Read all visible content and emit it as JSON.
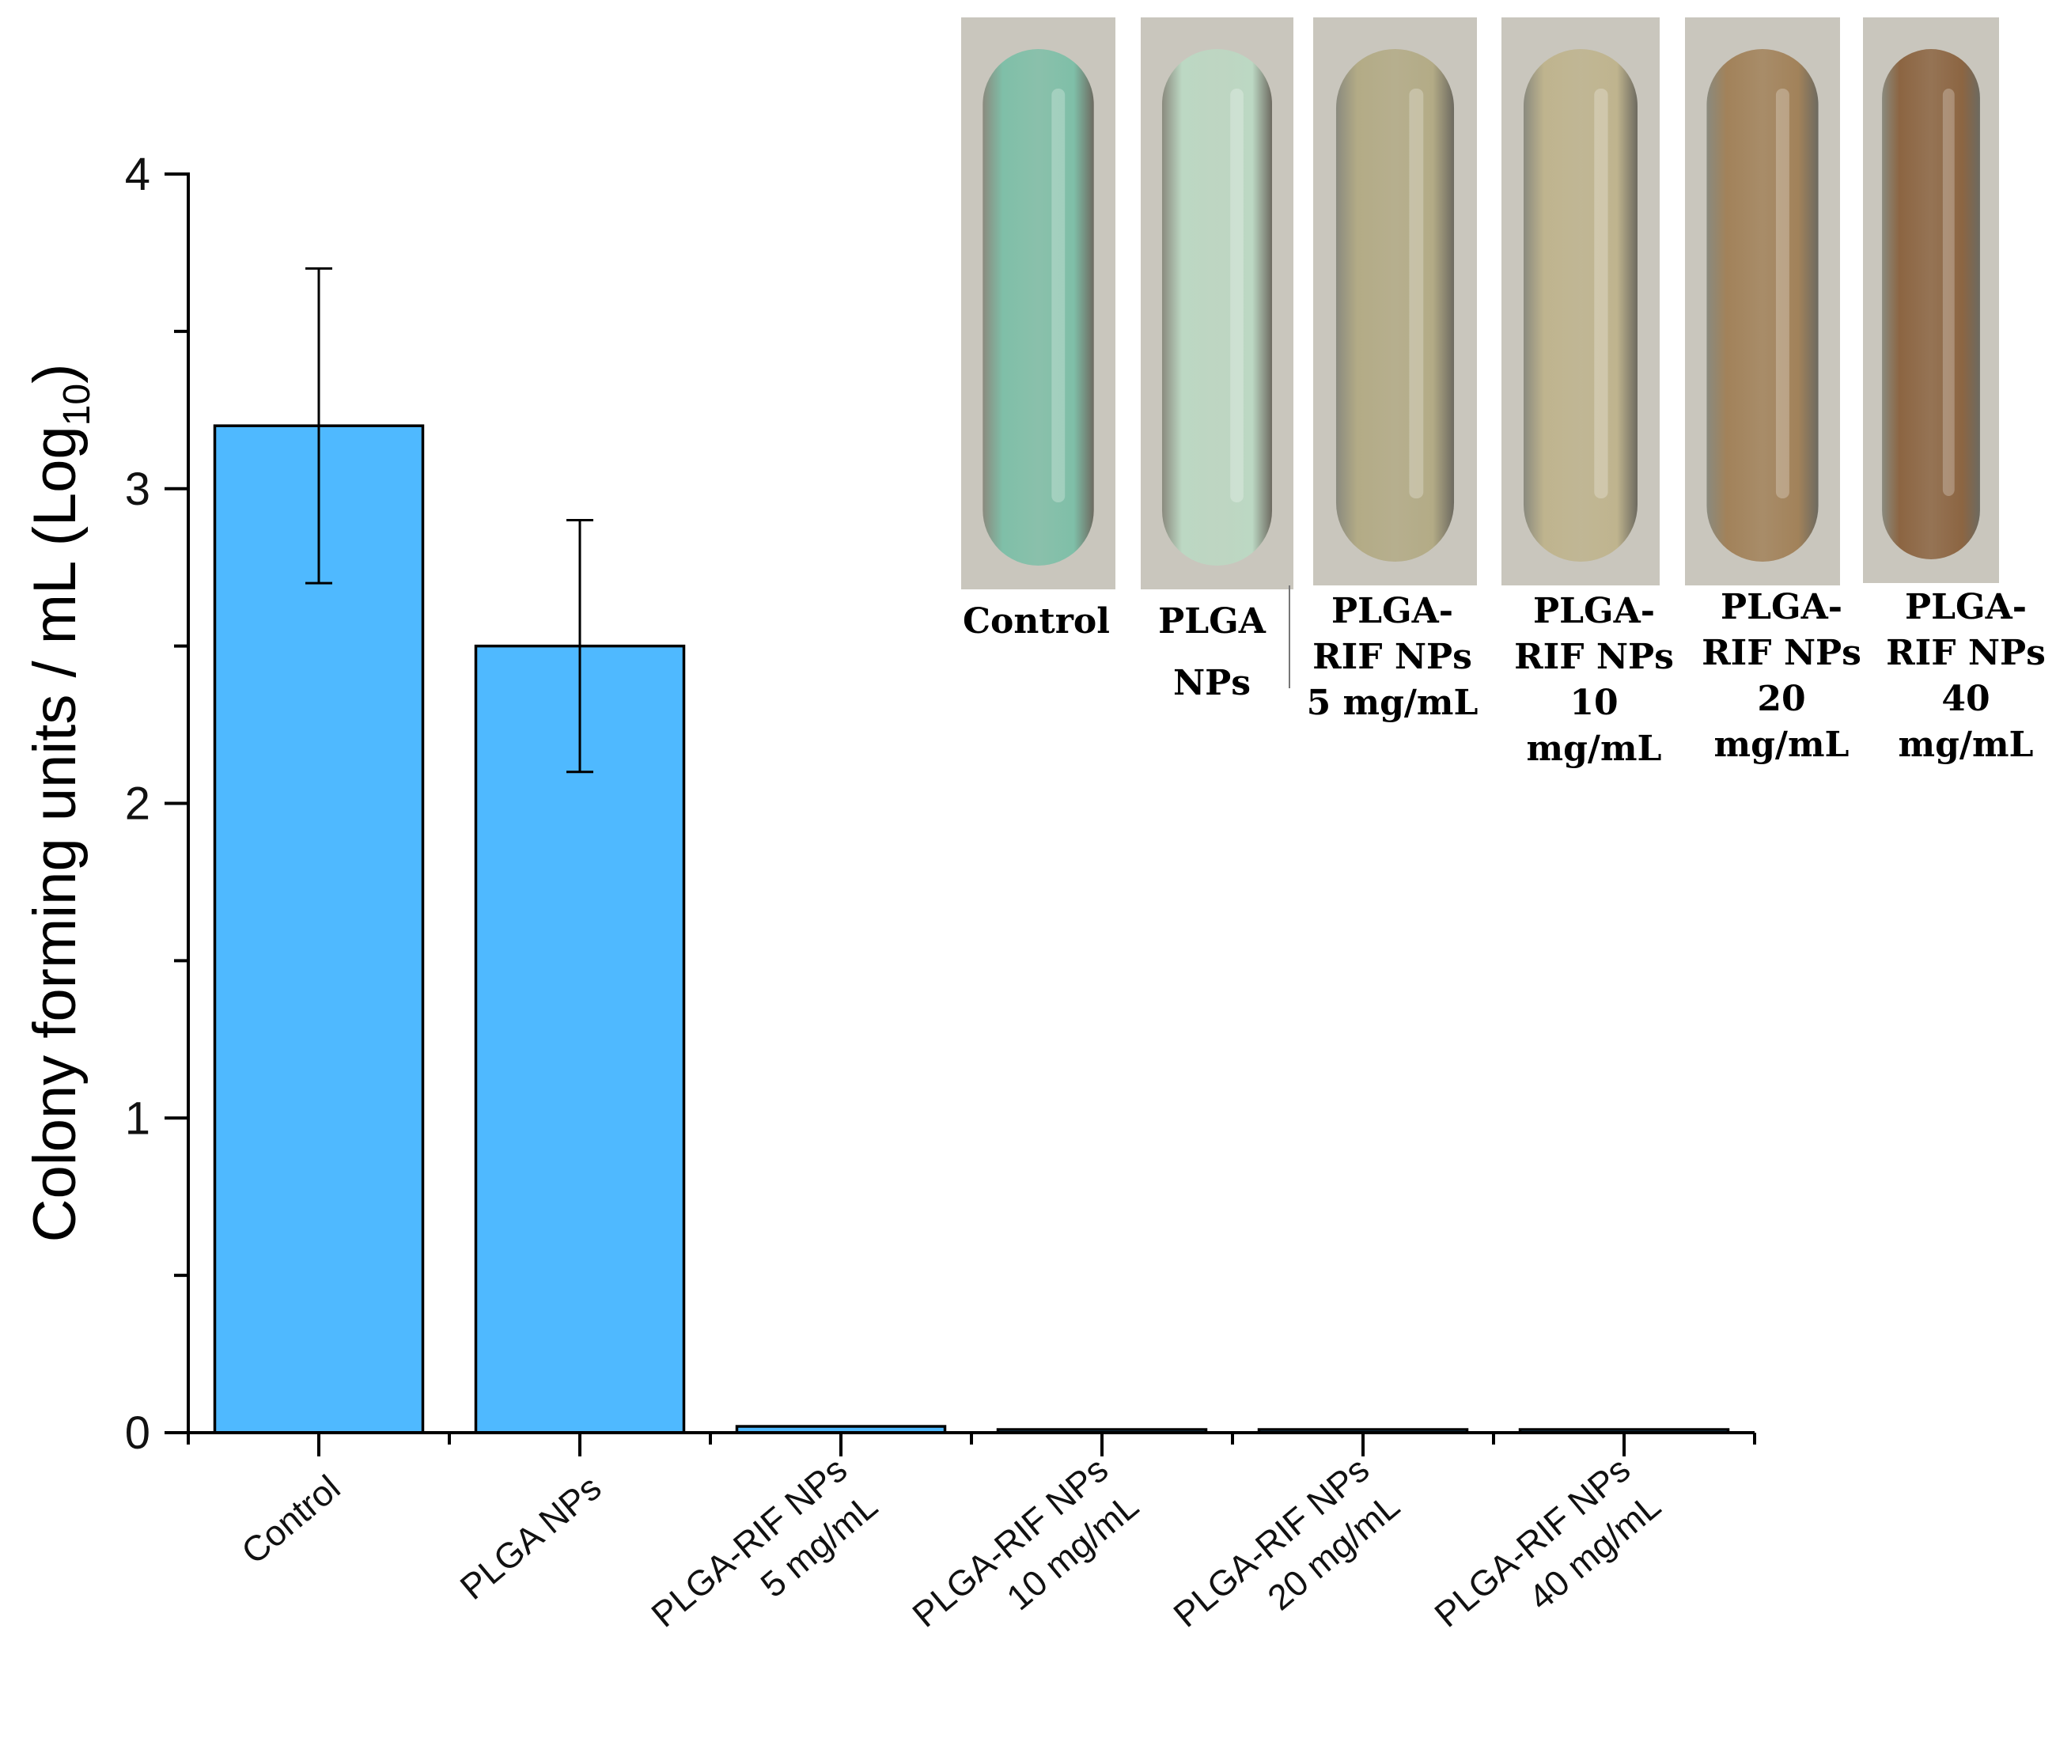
{
  "chart_data": {
    "type": "bar",
    "categories": [
      [
        "Control"
      ],
      [
        "PLGA NPs"
      ],
      [
        "PLGA-RIF NPs",
        "5 mg/mL"
      ],
      [
        "PLGA-RIF NPs",
        "10 mg/mL"
      ],
      [
        "PLGA-RIF NPs",
        "20 mg/mL"
      ],
      [
        "PLGA-RIF NPs",
        "40 mg/mL"
      ]
    ],
    "values": [
      3.2,
      2.5,
      0.02,
      0.01,
      0.01,
      0.01
    ],
    "errors": [
      0.5,
      0.4,
      0,
      0,
      0,
      0
    ],
    "ylabel": "Colony forming units / mL (Log",
    "ylabel_subscript": "10",
    "ylabel_close": ")",
    "ylim": [
      0,
      4
    ],
    "yticks": [
      "0",
      "1",
      "2",
      "3",
      "4"
    ],
    "bar_color": "#4FB9FF",
    "grid": false
  },
  "inset": {
    "labels": [
      [
        "Control"
      ],
      [
        "PLGA",
        "NPs"
      ],
      [
        "PLGA-",
        "RIF NPs",
        "5 mg/mL"
      ],
      [
        "PLGA-",
        "RIF NPs",
        "10",
        "mg/mL"
      ],
      [
        "PLGA-",
        "RIF NPs",
        "20",
        "mg/mL"
      ],
      [
        "PLGA-",
        "RIF NPs",
        "40",
        "mg/mL"
      ]
    ],
    "tube_colors": [
      "#7fbfa8",
      "#bcd8c3",
      "#b3ab86",
      "#bfb48e",
      "#a2825a",
      "#8c6542"
    ]
  }
}
